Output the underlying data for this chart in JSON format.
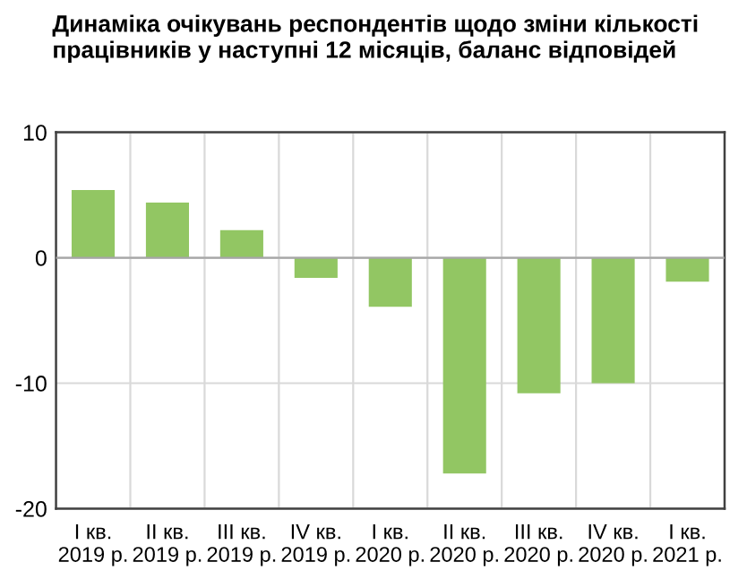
{
  "chart_data": {
    "type": "bar",
    "title": "Динаміка очікувань респондентів щодо зміни кількості працівників у наступні 12 місяців, баланс відповідей",
    "categories": [
      "I кв.\n2019 р.",
      "II кв.\n2019 р.",
      "III кв.\n2019 р.",
      "IV кв.\n2019 р.",
      "I кв.\n2020 р.",
      "II кв.\n2020 р.",
      "III кв.\n2020 р.",
      "IV кв.\n2020 р.",
      "I кв.\n2021 р."
    ],
    "values": [
      5.4,
      4.4,
      2.2,
      -1.6,
      -3.9,
      -17.2,
      -10.8,
      -10.0,
      -1.9
    ],
    "color": "#92c663",
    "ylim": [
      -20,
      10
    ],
    "yticks": [
      -20,
      -10,
      0,
      10
    ],
    "grid": true
  }
}
